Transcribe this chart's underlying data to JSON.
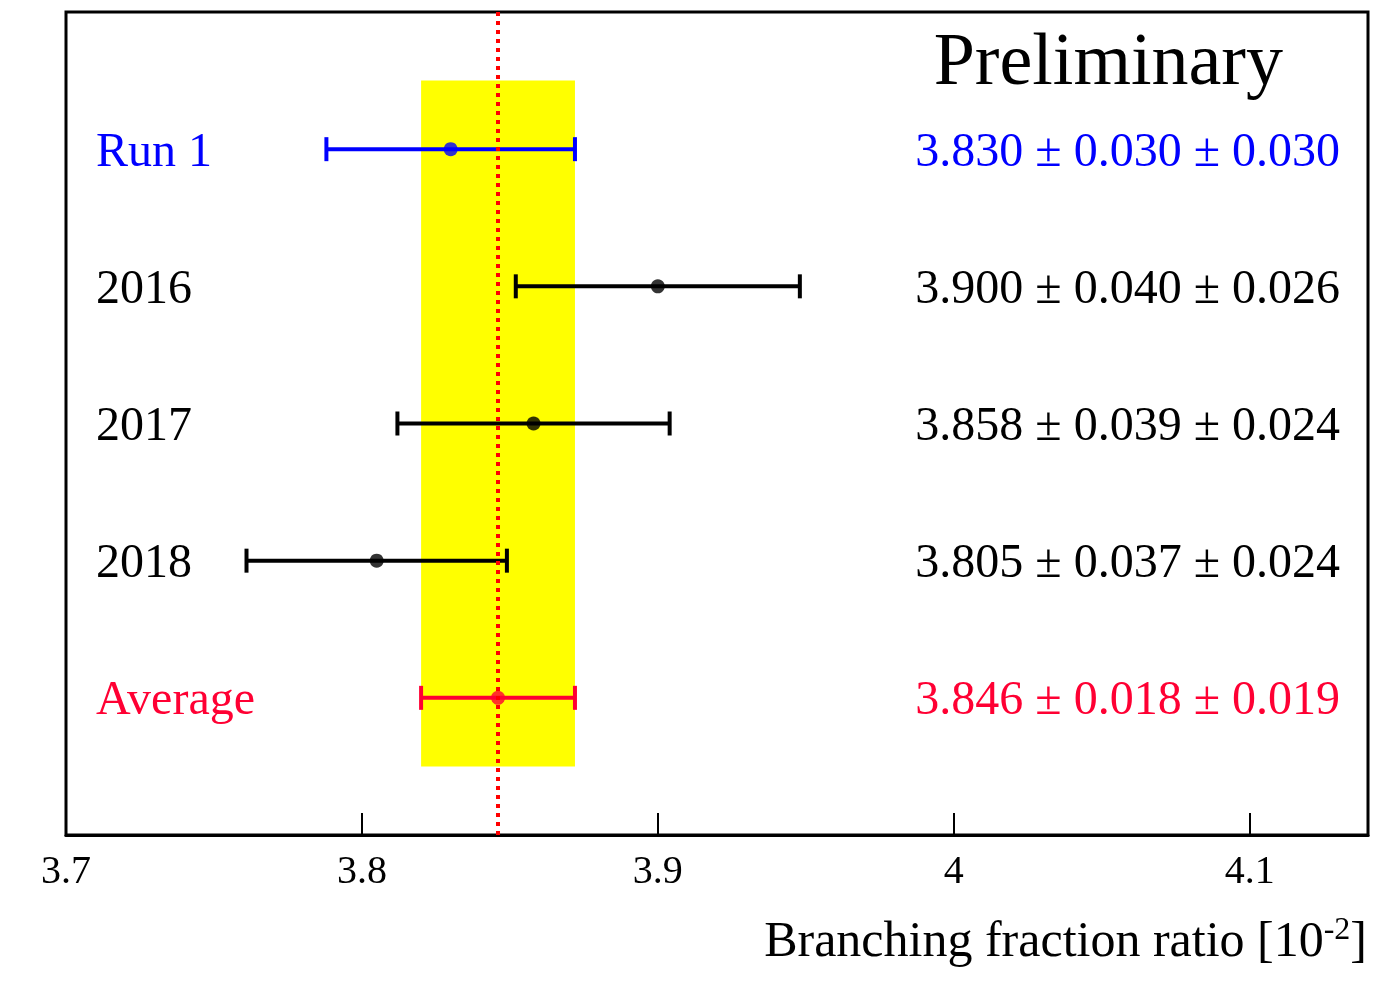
{
  "chart_data": {
    "type": "scatter",
    "orientation": "horizontal",
    "xlabel": "Branching fraction ratio [10$^{-2}$]",
    "annotations": [
      "Preliminary",
      "3.830 ± 0.030 ± 0.030",
      "3.900 ± 0.040 ± 0.026",
      "3.858 ± 0.039 ± 0.024",
      "3.805 ± 0.037 ± 0.024",
      "3.846 ± 0.018 ± 0.019"
    ],
    "categories": [
      "Run 1",
      "2016",
      "2017",
      "2018",
      "Average"
    ],
    "values": [
      3.83,
      3.9,
      3.858,
      3.805,
      3.846
    ],
    "errors": [
      0.042,
      0.048,
      0.046,
      0.044,
      0.026
    ],
    "colors": [
      "#0000ff",
      "#000000",
      "#000000",
      "#000000",
      "#ff0033"
    ],
    "xlim": [
      3.7,
      4.14
    ],
    "xticks": [
      3.7,
      3.8,
      3.9,
      4,
      4.1
    ],
    "bands": [
      {
        "axis": "x",
        "from": 3.82,
        "to": 3.872,
        "color": "#ffff00"
      }
    ],
    "ref_lines": [
      {
        "axis": "x",
        "value": 3.846,
        "color": "#ff0000",
        "line_style": "dotted"
      }
    ],
    "marker": "circle",
    "grid": false,
    "legend": false
  }
}
